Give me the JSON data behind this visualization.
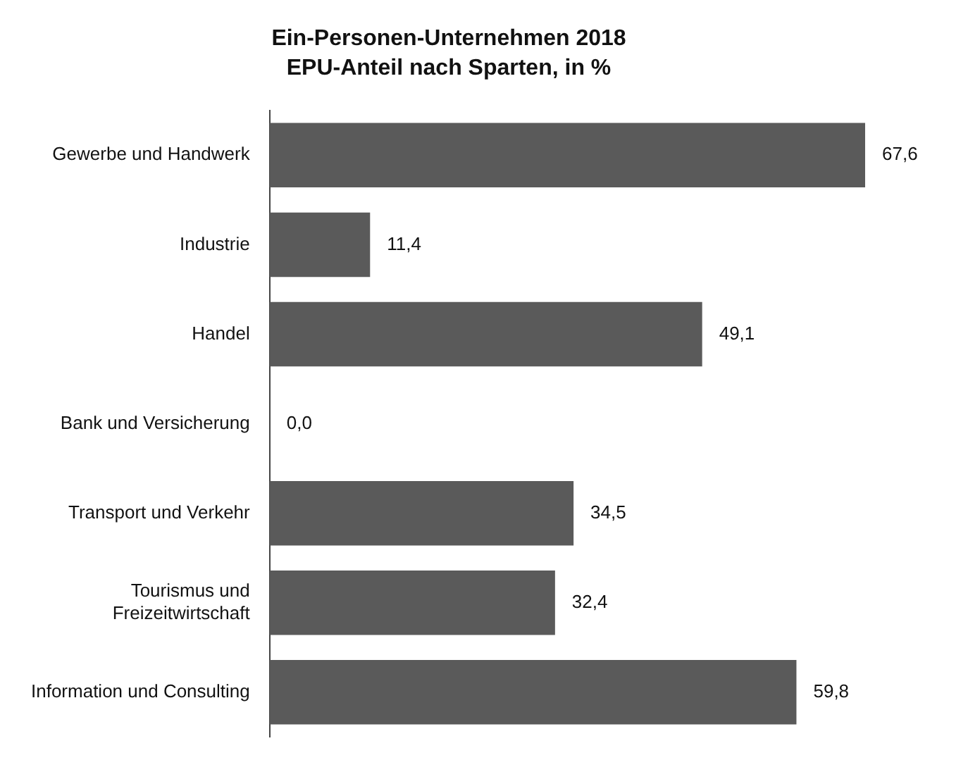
{
  "chart_data": {
    "type": "bar",
    "orientation": "horizontal",
    "title": "Ein-Personen-Unternehmen 2018",
    "subtitle": "EPU-Anteil nach Sparten, in %",
    "categories": [
      "Gewerbe und Handwerk",
      "Industrie",
      "Handel",
      "Bank und Versicherung",
      "Transport und Verkehr",
      "Tourismus und Freizeitwirtschaft",
      "Information und Consulting"
    ],
    "values": [
      67.6,
      11.4,
      49.1,
      0.0,
      34.5,
      32.4,
      59.8
    ],
    "value_labels": [
      "67,6",
      "11,4",
      "49,1",
      "0,0",
      "34,5",
      "32,4",
      "59,8"
    ],
    "color": "#5a5a5a",
    "grid": false,
    "legend": false
  }
}
